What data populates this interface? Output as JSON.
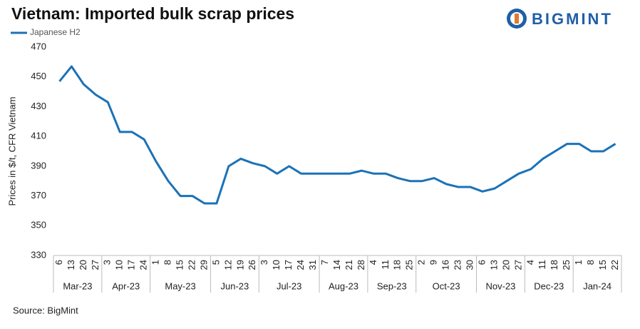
{
  "chart_data": {
    "type": "line",
    "title": "Vietnam: Imported bulk scrap prices",
    "y_label": "Prices in $/t, CFR Vietnam",
    "source": "Source: BigMint",
    "brand": "BIGMINT",
    "groups": [
      {
        "label": "Mar-23",
        "categories": [
          "6",
          "13",
          "20",
          "27"
        ]
      },
      {
        "label": "Apr-23",
        "categories": [
          "3",
          "10",
          "17",
          "24"
        ]
      },
      {
        "label": "May-23",
        "categories": [
          "1",
          "8",
          "15",
          "22",
          "29"
        ]
      },
      {
        "label": "Jun-23",
        "categories": [
          "5",
          "12",
          "19",
          "26"
        ]
      },
      {
        "label": "Jul-23",
        "categories": [
          "3",
          "10",
          "17",
          "24",
          "31"
        ]
      },
      {
        "label": "Aug-23",
        "categories": [
          "7",
          "14",
          "21",
          "28"
        ]
      },
      {
        "label": "Sep-23",
        "categories": [
          "4",
          "11",
          "18",
          "25"
        ]
      },
      {
        "label": "Oct-23",
        "categories": [
          "2",
          "9",
          "16",
          "23",
          "30"
        ]
      },
      {
        "label": "Nov-23",
        "categories": [
          "6",
          "13",
          "20",
          "27"
        ]
      },
      {
        "label": "Dec-23",
        "categories": [
          "4",
          "11",
          "18",
          "25"
        ]
      },
      {
        "label": "Jan-24",
        "categories": [
          "1",
          "8",
          "15",
          "22"
        ]
      }
    ],
    "series": [
      {
        "name": "Japanese H2",
        "color": "#1a72b8",
        "values": [
          447,
          457,
          445,
          438,
          433,
          413,
          413,
          408,
          393,
          380,
          370,
          370,
          365,
          365,
          390,
          395,
          392,
          390,
          385,
          390,
          385,
          385,
          385,
          385,
          385,
          387,
          385,
          385,
          382,
          380,
          380,
          382,
          378,
          376,
          376,
          373,
          375,
          380,
          385,
          388,
          395,
          400,
          405,
          405,
          400,
          400,
          405
        ]
      }
    ],
    "ylim": [
      330,
      470
    ],
    "yticks": [
      330,
      350,
      370,
      390,
      410,
      430,
      450,
      470
    ],
    "grid": false,
    "legend": "top-left"
  }
}
